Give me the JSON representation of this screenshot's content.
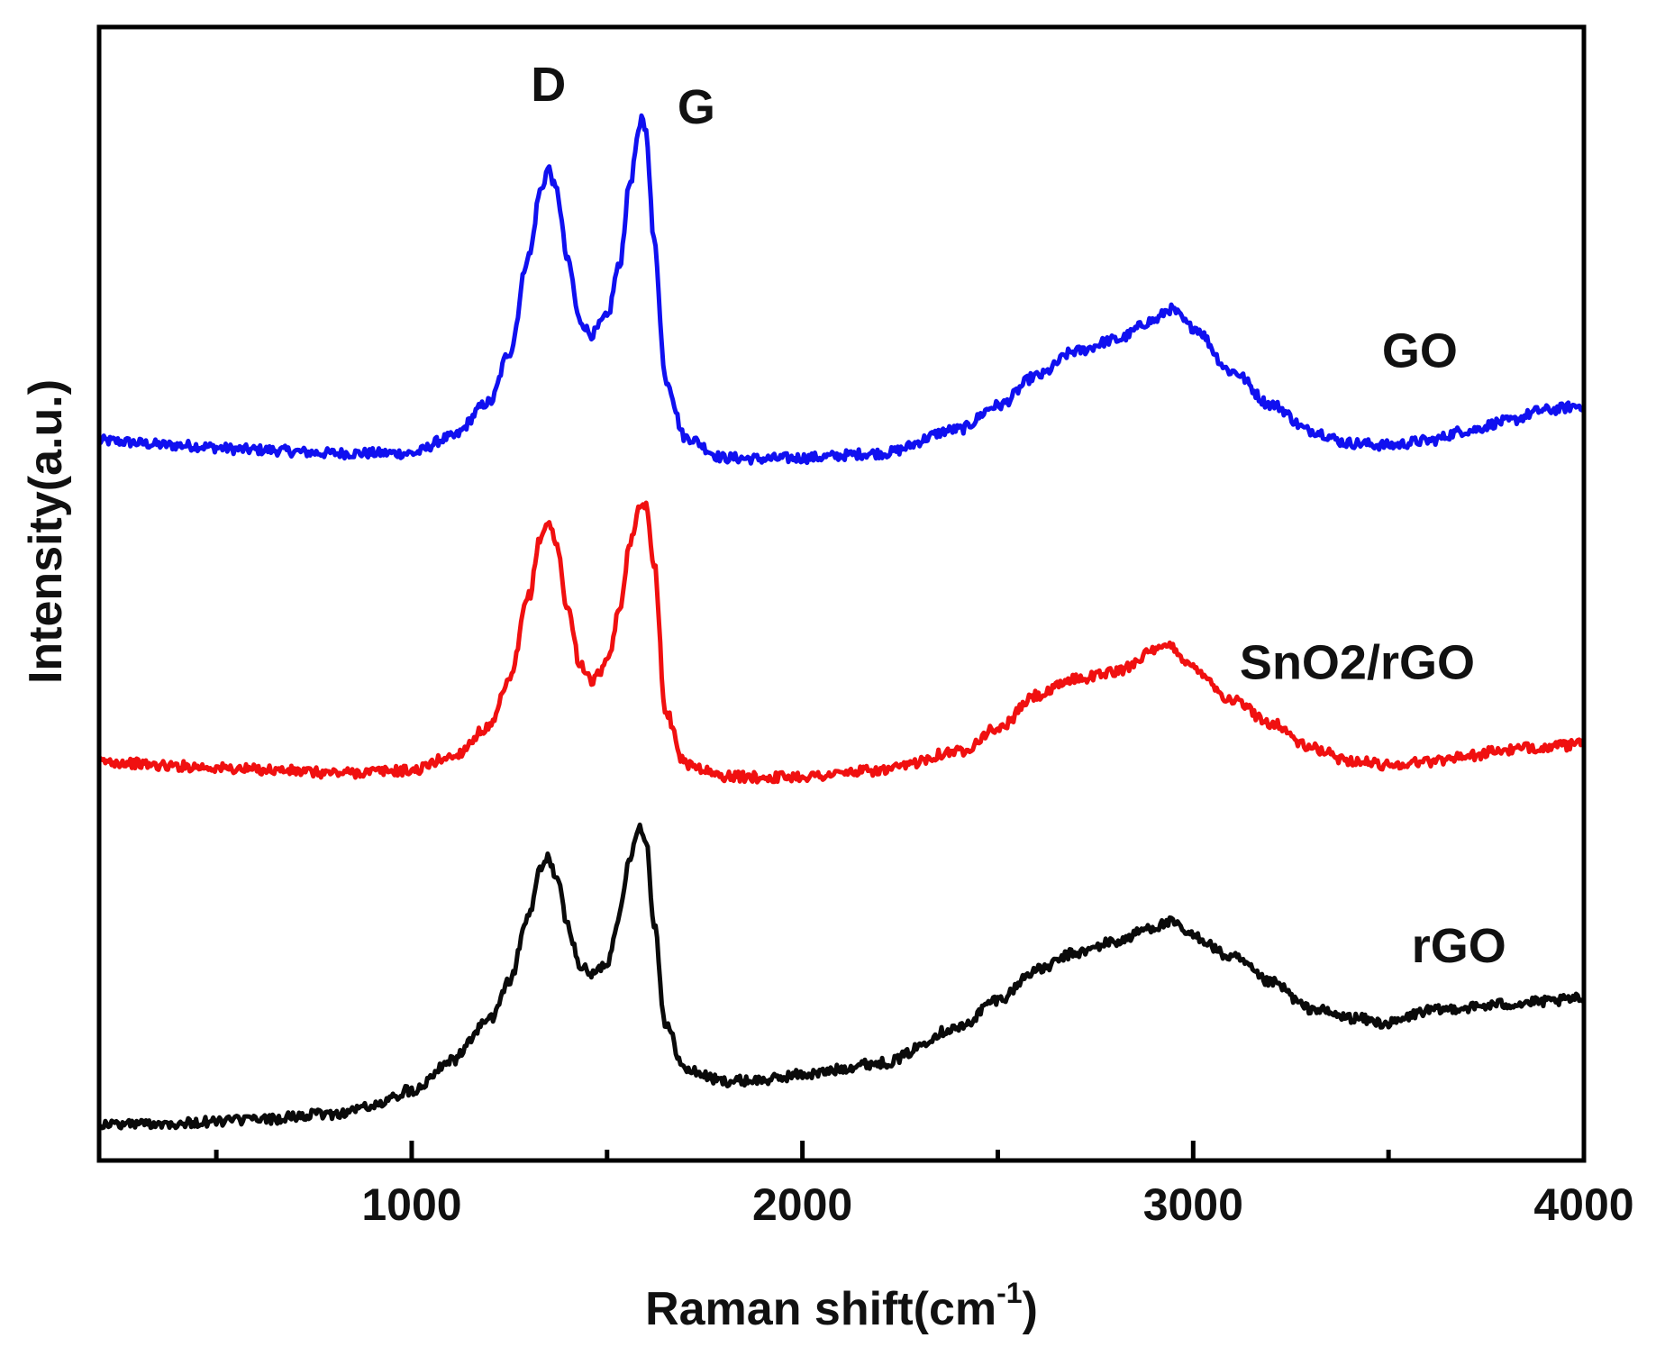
{
  "chart_data": {
    "type": "line",
    "title": "",
    "xlabel": "Raman shift(cm",
    "xlabel_sup": "-1",
    "xlabel_close": ")",
    "ylabel": "Intensity(a.u.)",
    "xlim": [
      200,
      4000
    ],
    "ylim": [
      0,
      100
    ],
    "x_major_ticks": [
      1000,
      2000,
      3000,
      4000
    ],
    "x_minor_ticks": [
      500,
      1500,
      2500,
      3500
    ],
    "x_tick_labels": [
      "1000",
      "2000",
      "3000",
      "4000"
    ],
    "y_ticks_shown": false,
    "grid": false,
    "legend": "none",
    "peak_annotations": [
      {
        "label": "D",
        "x": 1350
      },
      {
        "label": "G",
        "x": 1590
      }
    ],
    "series": [
      {
        "name": "GO",
        "color": "#1010f0",
        "label_x": 3580,
        "label_y": 70,
        "x": [
          200,
          400,
          600,
          800,
          1000,
          1100,
          1200,
          1250,
          1300,
          1330,
          1350,
          1370,
          1400,
          1430,
          1460,
          1500,
          1530,
          1560,
          1580,
          1590,
          1600,
          1620,
          1650,
          1700,
          1800,
          1900,
          2000,
          2200,
          2400,
          2500,
          2600,
          2700,
          2800,
          2900,
          2940,
          3000,
          3100,
          3200,
          3300,
          3400,
          3500,
          3600,
          3700,
          3800,
          3900,
          4000
        ],
        "y": [
          63.5,
          63.1,
          62.7,
          62.4,
          62.4,
          63.8,
          66.9,
          71.3,
          79.8,
          85.6,
          87.5,
          85.6,
          79.3,
          74.1,
          72.9,
          74.4,
          78.8,
          86.4,
          90.4,
          92.1,
          90.7,
          81.1,
          68.9,
          63.8,
          62.0,
          61.9,
          62.0,
          62.4,
          64.5,
          66.6,
          69.2,
          71.4,
          72.4,
          74.1,
          75.1,
          73.5,
          69.6,
          66.7,
          64.4,
          63.3,
          63.1,
          63.5,
          64.4,
          65.2,
          66.2,
          66.6
        ]
      },
      {
        "name": "SnO2/rGO",
        "color": "#f01010",
        "label_x": 3420,
        "label_y": 42.5,
        "x": [
          200,
          400,
          600,
          800,
          1000,
          1100,
          1200,
          1250,
          1300,
          1330,
          1350,
          1370,
          1400,
          1430,
          1460,
          1500,
          1530,
          1560,
          1580,
          1600,
          1620,
          1650,
          1700,
          1800,
          1900,
          2000,
          2200,
          2400,
          2500,
          2600,
          2700,
          2800,
          2900,
          2940,
          3000,
          3100,
          3200,
          3300,
          3400,
          3500,
          3600,
          3700,
          3800,
          3900,
          4000
        ],
        "y": [
          35.2,
          34.8,
          34.5,
          34.2,
          34.4,
          35.6,
          38.2,
          42.3,
          49.8,
          55.0,
          56.4,
          54.3,
          48.6,
          43.9,
          42.3,
          43.8,
          48.2,
          54.7,
          57.3,
          57.9,
          52.8,
          39.5,
          35.0,
          33.9,
          33.8,
          33.9,
          34.4,
          36.1,
          38.1,
          41.0,
          42.5,
          43.1,
          44.9,
          45.4,
          43.5,
          40.6,
          38.6,
          36.4,
          35.3,
          34.9,
          35.2,
          35.7,
          36.2,
          36.5,
          36.7
        ]
      },
      {
        "name": "rGO",
        "color": "#0a0a0a",
        "label_x": 3680,
        "label_y": 17.5,
        "x": [
          200,
          400,
          600,
          800,
          900,
          1000,
          1100,
          1200,
          1250,
          1300,
          1330,
          1350,
          1370,
          1400,
          1430,
          1460,
          1500,
          1530,
          1560,
          1580,
          1600,
          1620,
          1650,
          1700,
          1800,
          1900,
          2000,
          2200,
          2400,
          2500,
          2600,
          2700,
          2800,
          2900,
          2940,
          3000,
          3100,
          3200,
          3300,
          3400,
          3500,
          3600,
          3700,
          3800,
          3900,
          4000
        ],
        "y": [
          3.2,
          3.3,
          3.6,
          4.1,
          4.8,
          6.2,
          8.8,
          12.4,
          15.8,
          21.6,
          25.7,
          26.7,
          25.0,
          20.7,
          17.2,
          16.4,
          17.4,
          21.5,
          26.9,
          29.5,
          28.2,
          21.0,
          11.9,
          8.0,
          7.0,
          7.1,
          7.6,
          8.6,
          11.7,
          14.2,
          16.8,
          18.3,
          19.3,
          20.6,
          21.0,
          19.8,
          17.9,
          15.7,
          13.4,
          12.6,
          12.1,
          13.2,
          13.5,
          13.8,
          14.0,
          14.3
        ]
      }
    ]
  }
}
